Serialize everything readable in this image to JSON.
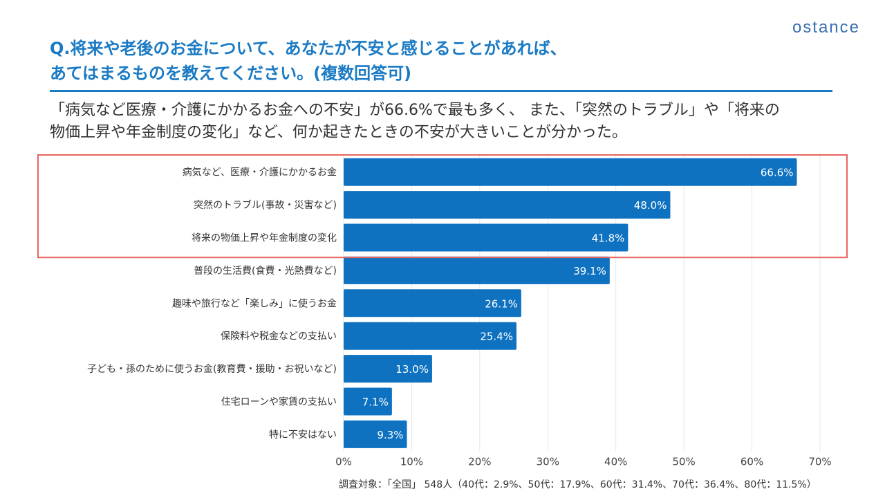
{
  "logo": "ostance",
  "title": "Q.将来や老後のお金について、あなたが不安と感じることがあれば、あてはまるものを教えてください。(複数回答可)",
  "title_lines": [
    "Q.将来や老後のお金について、あなたが不安と感じることがあれば、",
    "あてはまるものを教えてください。(複数回答可)"
  ],
  "summary_lines": [
    "「病気など医療・介護にかかるお金への不安」が66.6%で最も多く、 また、「突然のトラブル」や「将来の",
    "物価上昇や年金制度の変化」など、何か起きたときの不安が大きいことが分かった。"
  ],
  "footnote": "調査対象：「全国」 548人（40代：2.9%、50代：17.9%、60代：31.4%、70代：36.4%、80代：11.5%）",
  "colors": {
    "bar": "#0f72c1",
    "accent": "#1a7ac4",
    "highlight": "#e8645e",
    "grid": "#e6e6e6"
  },
  "chart_data": {
    "type": "bar",
    "orientation": "horizontal",
    "categories": [
      "病気など、医療・介護にかかるお金",
      "突然のトラブル(事故・災害など)",
      "将来の物価上昇や年金制度の変化",
      "普段の生活費(食費・光熱費など)",
      "趣味や旅行など「楽しみ」に使うお金",
      "保険料や税金などの支払い",
      "子ども・孫のために使うお金(教育費・援助・お祝いなど)",
      "住宅ローンや家賃の支払い",
      "特に不安はない"
    ],
    "values": [
      66.6,
      48.0,
      41.8,
      39.1,
      26.1,
      25.4,
      13.0,
      7.1,
      9.3
    ],
    "value_labels": [
      "66.6%",
      "48.0%",
      "41.8%",
      "39.1%",
      "26.1%",
      "25.4%",
      "13.0%",
      "7.1%",
      "9.3%"
    ],
    "x_ticks": [
      "0%",
      "10%",
      "20%",
      "30%",
      "40%",
      "50%",
      "60%",
      "70%"
    ],
    "xlim": [
      0,
      70
    ],
    "grid": true,
    "highlighted_categories": [
      0,
      1,
      2
    ]
  }
}
